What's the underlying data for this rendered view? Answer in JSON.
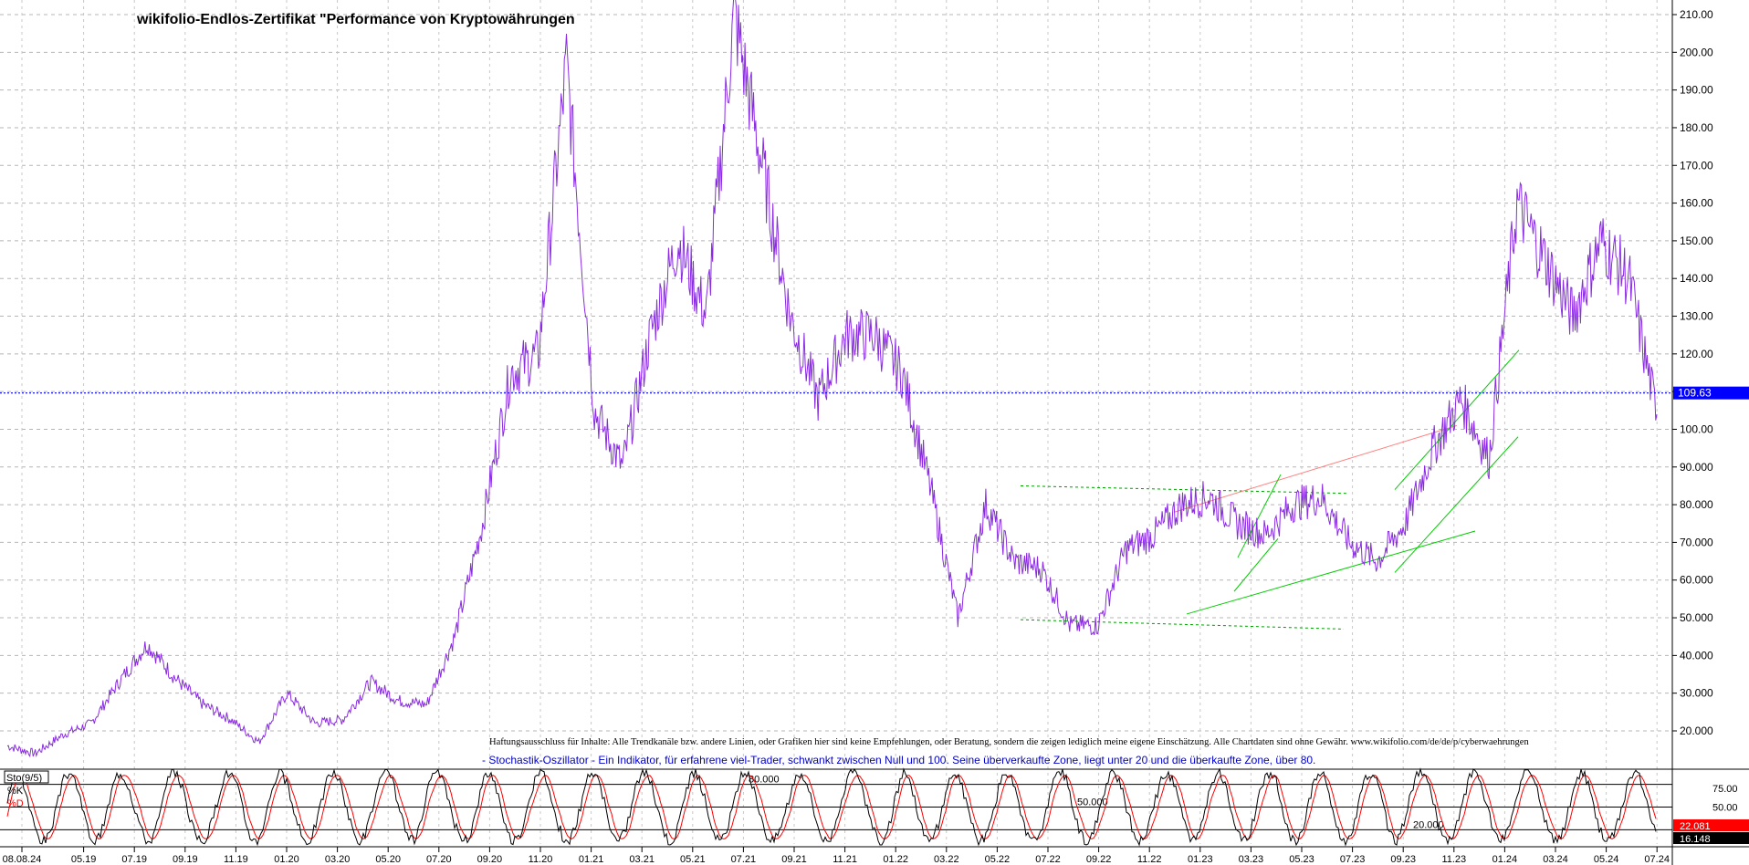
{
  "chart_data": [
    {
      "type": "line",
      "title": "wikifolio-Endlos-Zertifikat \"Performance von Kryptowährungen",
      "xlabel": "",
      "ylabel": "",
      "ylim": [
        13,
        214
      ],
      "yticks": [
        "20.000",
        "30.000",
        "40.000",
        "50.000",
        "60.000",
        "70.000",
        "80.000",
        "90.000",
        "100.00",
        "110.00",
        "120.00",
        "130.00",
        "140.00",
        "150.00",
        "160.00",
        "170.00",
        "180.00",
        "190.00",
        "200.00",
        "210.00"
      ],
      "ytick_values": [
        20,
        30,
        40,
        50,
        60,
        70,
        80,
        90,
        100,
        110,
        120,
        130,
        140,
        150,
        160,
        170,
        180,
        190,
        200,
        210
      ],
      "grid": true,
      "line_color": "#8a2be2",
      "x_dates": [
        "2018-08",
        "2018-12",
        "2019-02",
        "2019-04",
        "2019-06",
        "2019-07",
        "2019-08",
        "2019-10",
        "2019-12",
        "2020-03",
        "2020-04",
        "2020-06",
        "2020-08",
        "2020-09",
        "2020-11",
        "2020-12",
        "2021-01",
        "2021-02",
        "2021-03",
        "2021-04",
        "2021-05",
        "2021-06",
        "2021-07",
        "2021-08",
        "2021-09",
        "2021-10",
        "2021-11",
        "2021-12",
        "2022-01",
        "2022-02",
        "2022-03",
        "2022-04",
        "2022-05",
        "2022-06",
        "2022-07",
        "2022-08",
        "2022-09",
        "2022-10",
        "2022-11",
        "2022-12",
        "2023-01",
        "2023-02",
        "2023-03",
        "2023-04",
        "2023-05",
        "2023-06",
        "2023-07",
        "2023-08",
        "2023-09",
        "2023-10",
        "2023-11",
        "2023-12",
        "2024-01",
        "2024-02",
        "2024-03",
        "2024-04",
        "2024-05",
        "2024-06",
        "2024-07",
        "2024-08"
      ],
      "values": [
        16,
        14,
        19,
        22,
        33,
        43,
        34,
        27,
        23,
        17,
        30,
        22,
        23,
        33,
        28,
        27,
        45,
        75,
        115,
        120,
        197,
        105,
        90,
        125,
        150,
        130,
        210,
        170,
        130,
        108,
        125,
        125,
        115,
        85,
        50,
        80,
        65,
        63,
        48,
        48,
        68,
        72,
        80,
        82,
        75,
        72,
        80,
        82,
        70,
        65,
        75,
        95,
        108,
        92,
        160,
        145,
        130,
        150,
        140,
        104
      ],
      "current_value": "109.63",
      "current_value_y": 109.63
    },
    {
      "type": "line",
      "title": "Sto(9/5)",
      "legend": [
        "%K",
        "%D"
      ],
      "ylim": [
        0,
        100
      ],
      "ref_levels": [
        {
          "value": 80,
          "label": "80.000"
        },
        {
          "value": 50,
          "label": "50.000"
        },
        {
          "value": 20,
          "label": "20.000"
        }
      ],
      "yticks": [
        "75.00",
        "50.00"
      ],
      "last_k": "16.148",
      "last_d": "22.081"
    }
  ],
  "x_axis": {
    "ticks": [
      "08.08.24",
      "05.19",
      "07.19",
      "09.19",
      "11.19",
      "01.20",
      "03.20",
      "05.20",
      "07.20",
      "09.20",
      "11.20",
      "01.21",
      "03.21",
      "05.21",
      "07.21",
      "09.21",
      "11.21",
      "01.22",
      "03.22",
      "05.22",
      "07.22",
      "09.22",
      "11.22",
      "01.23",
      "03.23",
      "05.23",
      "07.23",
      "09.23",
      "11.23",
      "01.24",
      "03.24",
      "05.24",
      "07.24"
    ]
  },
  "disclaimer": "Haftungsausschluss für Inhalte: Alle Trendkanäle bzw. andere Linien, oder Grafiken hier sind keine Empfehlungen, oder Beratung, sondern die zeigen lediglich meine eigene Einschätzung. Alle Chartdaten sind ohne Gewähr.  www.wikifolio.com/de/de/p/cyberwaehrungen",
  "stoch_note": "- Stochastik-Oszillator - Ein Indikator, für erfahrene viel-Trader, schwankt zwischen Null und 100. Seine überverkaufte Zone, liegt unter 20 und die überkaufte Zone, über 80.",
  "colors": {
    "price_line": "#8a2be2",
    "current_line": "#0000ff",
    "trend_green": "#00cc00",
    "trend_dashed": "#009900",
    "trend_pink": "#ff8080",
    "stoch_k": "#000000",
    "stoch_d": "#ff0000"
  }
}
